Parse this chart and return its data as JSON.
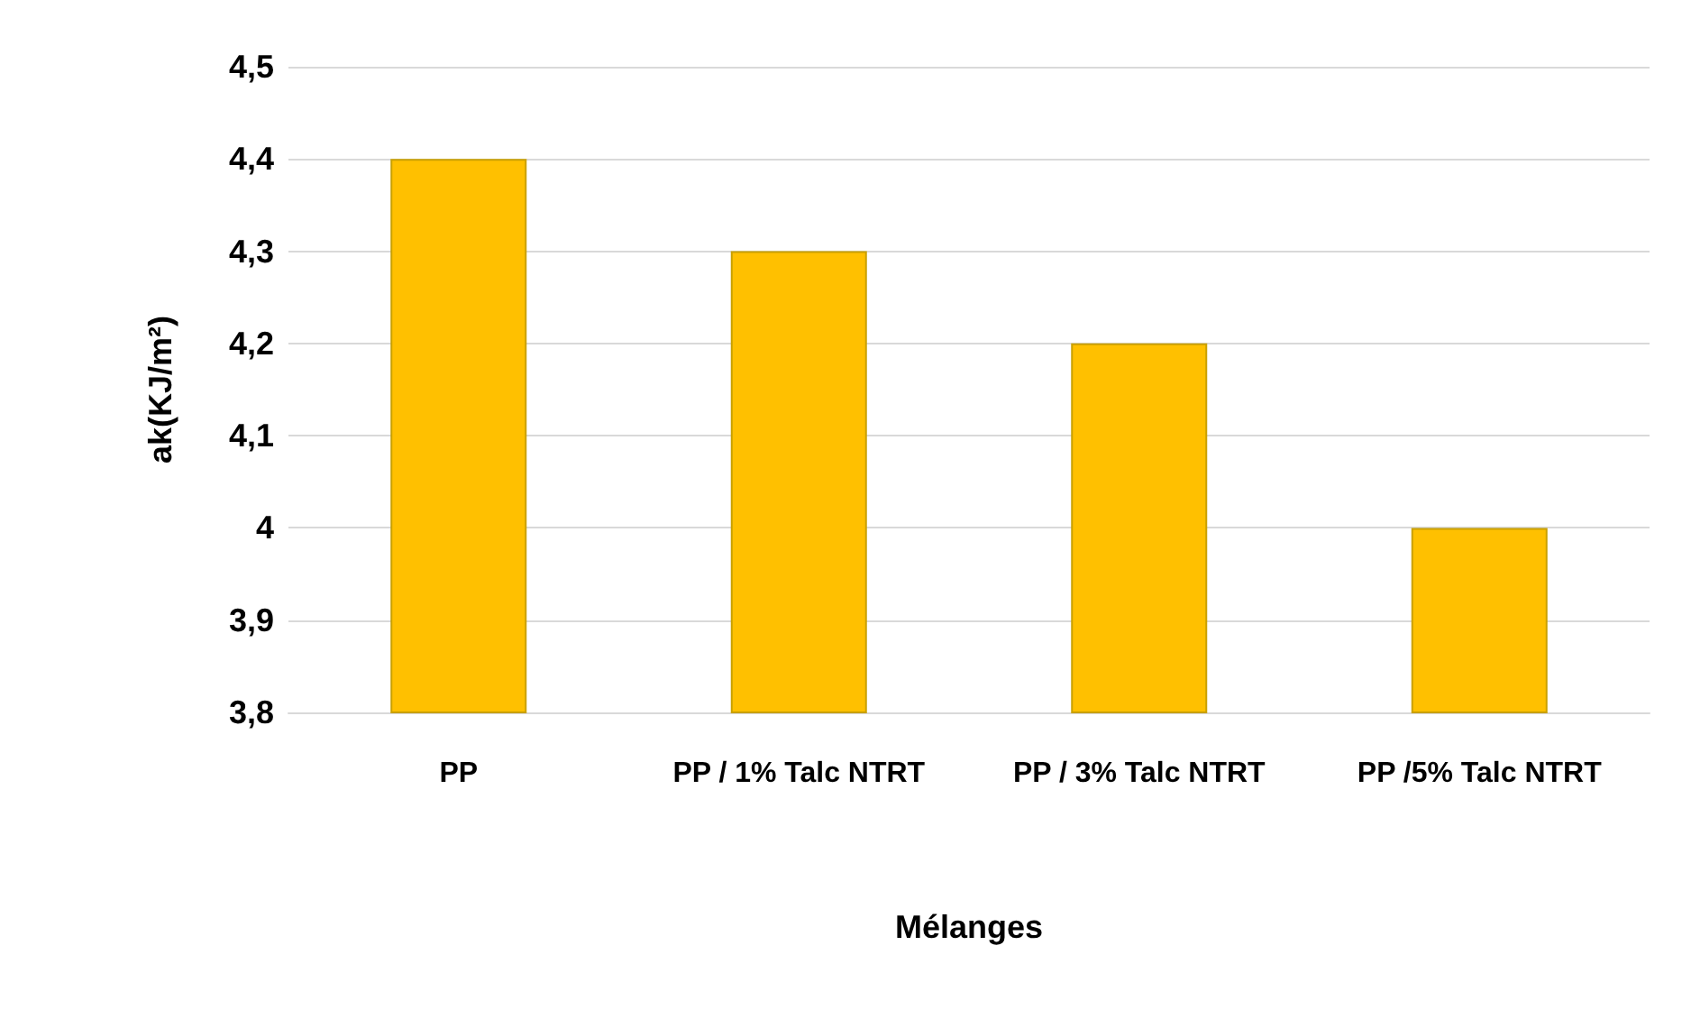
{
  "chart_data": {
    "type": "bar",
    "categories": [
      "PP",
      "PP / 1% Talc NTRT",
      "PP / 3% Talc NTRT",
      "PP /5% Talc NTRT"
    ],
    "values": [
      4.4,
      4.3,
      4.2,
      4.0
    ],
    "color": "#ffc000",
    "xlabel": "Mélanges",
    "ylabel": "ak(KJ/m²)",
    "ylim": [
      3.8,
      4.5
    ],
    "yticks": [
      {
        "value": 3.8,
        "label": "3,8"
      },
      {
        "value": 3.9,
        "label": "3,9"
      },
      4,
      {
        "value": 4.1,
        "label": "4,1"
      },
      {
        "value": 4.2,
        "label": "4,2"
      },
      {
        "value": 4.3,
        "label": "4,3"
      },
      {
        "value": 4.4,
        "label": "4,4"
      },
      {
        "value": 4.5,
        "label": "4,5"
      }
    ],
    "grid": true
  }
}
